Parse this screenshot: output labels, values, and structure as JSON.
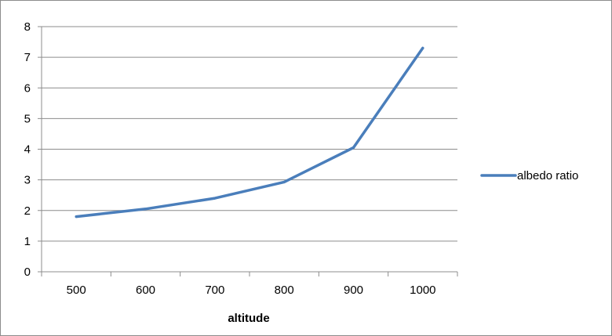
{
  "chart_data": {
    "type": "line",
    "title": "",
    "xlabel": "altitude",
    "ylabel": "",
    "x": [
      500,
      600,
      700,
      800,
      900,
      1000
    ],
    "categories": [
      "500",
      "600",
      "700",
      "800",
      "900",
      "1000"
    ],
    "series": [
      {
        "name": "albedo ratio",
        "values": [
          1.8,
          2.05,
          2.4,
          2.93,
          4.05,
          7.3
        ],
        "color": "#4a7ebb"
      }
    ],
    "ylim": [
      0,
      8
    ],
    "yticks": [
      "0",
      "1",
      "2",
      "3",
      "4",
      "5",
      "6",
      "7",
      "8"
    ],
    "grid": "horizontal",
    "legend_position": "right"
  }
}
